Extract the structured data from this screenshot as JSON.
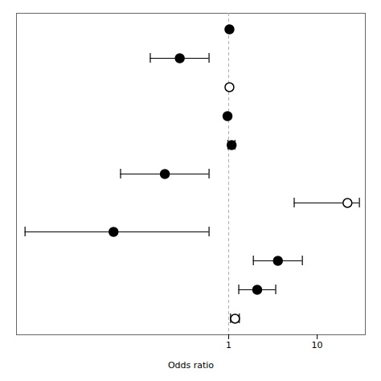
{
  "chart_data": {
    "type": "scatter",
    "categories": [
      null,
      null,
      null,
      null,
      null,
      null,
      null,
      null,
      null,
      null,
      null
    ],
    "values": [
      1.02,
      0.28,
      1.02,
      0.97,
      1.08,
      0.19,
      22.0,
      0.05,
      3.6,
      2.1,
      1.18
    ],
    "ci_lo": [
      1.02,
      0.13,
      1.02,
      0.97,
      0.98,
      0.06,
      5.5,
      0.005,
      1.9,
      1.3,
      1.05
    ],
    "ci_hi": [
      1.02,
      0.6,
      1.02,
      0.97,
      1.18,
      0.6,
      30.0,
      0.6,
      6.8,
      3.4,
      1.32
    ],
    "colors": [
      "#000000",
      "#000000",
      "#ffffff",
      "#000000",
      "#000000",
      "#000000",
      "#ffffff",
      "#000000",
      "#000000",
      "#000000",
      "#ffffff"
    ],
    "color": "#000000",
    "marker": "circle",
    "ref_line": 1.0,
    "xlabel": "Odds ratio",
    "log": "x",
    "xlim": [
      0.004,
      35.0
    ],
    "xticks": [
      1,
      10
    ],
    "tick_labels": "x",
    "grid": false
  }
}
